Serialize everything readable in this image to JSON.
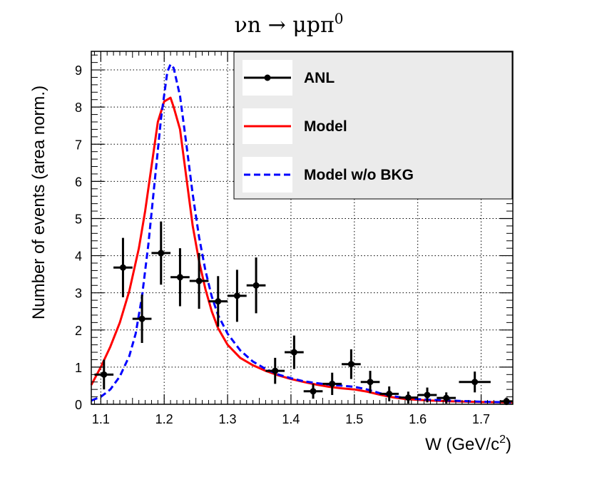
{
  "chart_data": {
    "type": "line",
    "title": "νn → μpπ",
    "title_superscript": "0",
    "xlabel": "W (GeV/c",
    "xlabel_superscript": "2",
    "xlabel_suffix": ")",
    "ylabel": "Number of events (area norm.)",
    "xlim": [
      1.085,
      1.75
    ],
    "ylim": [
      0,
      9.5
    ],
    "x_ticks": [
      1.1,
      1.2,
      1.3,
      1.4,
      1.5,
      1.6,
      1.7
    ],
    "x_tick_labels": [
      "1.1",
      "1.2",
      "1.3",
      "1.4",
      "1.5",
      "1.6",
      "1.7"
    ],
    "y_ticks": [
      0,
      1,
      2,
      3,
      4,
      5,
      6,
      7,
      8,
      9
    ],
    "y_tick_labels": [
      "0",
      "1",
      "2",
      "3",
      "4",
      "5",
      "6",
      "7",
      "8",
      "9"
    ],
    "grid": true,
    "legend_position": "top-right",
    "legend": [
      {
        "key": "anl",
        "label": "ANL",
        "color": "#000000",
        "style": "marker"
      },
      {
        "key": "model",
        "label": "Model",
        "color": "#ff0000",
        "style": "solid"
      },
      {
        "key": "model_nobkg",
        "label": "Model w/o BKG",
        "color": "#0000ff",
        "style": "dashed"
      }
    ],
    "series": [
      {
        "name": "ANL",
        "kind": "points",
        "color": "#000000",
        "x_halfwidth": 0.015,
        "points": [
          {
            "x": 1.105,
            "y": 0.8,
            "err": 0.4
          },
          {
            "x": 1.135,
            "y": 3.68,
            "err": 0.8
          },
          {
            "x": 1.165,
            "y": 2.3,
            "err": 0.65
          },
          {
            "x": 1.195,
            "y": 4.07,
            "err": 0.85
          },
          {
            "x": 1.225,
            "y": 3.42,
            "err": 0.78
          },
          {
            "x": 1.255,
            "y": 3.32,
            "err": 0.75
          },
          {
            "x": 1.285,
            "y": 2.77,
            "err": 0.68
          },
          {
            "x": 1.315,
            "y": 2.92,
            "err": 0.7
          },
          {
            "x": 1.345,
            "y": 3.2,
            "err": 0.75
          },
          {
            "x": 1.375,
            "y": 0.9,
            "err": 0.35
          },
          {
            "x": 1.405,
            "y": 1.4,
            "err": 0.45
          },
          {
            "x": 1.435,
            "y": 0.35,
            "err": 0.2
          },
          {
            "x": 1.465,
            "y": 0.55,
            "err": 0.3
          },
          {
            "x": 1.495,
            "y": 1.08,
            "err": 0.4
          },
          {
            "x": 1.525,
            "y": 0.6,
            "err": 0.3
          },
          {
            "x": 1.555,
            "y": 0.28,
            "err": 0.2
          },
          {
            "x": 1.585,
            "y": 0.18,
            "err": 0.16
          },
          {
            "x": 1.615,
            "y": 0.25,
            "err": 0.2
          },
          {
            "x": 1.645,
            "y": 0.17,
            "err": 0.15
          },
          {
            "x": 1.69,
            "y": 0.6,
            "err": 0.28,
            "x_halfwidth": 0.025
          },
          {
            "x": 1.74,
            "y": 0.08,
            "err": 0.1,
            "x_halfwidth": 0.01
          }
        ]
      },
      {
        "name": "Model",
        "kind": "line",
        "color": "#ff0000",
        "dashed": false,
        "x": [
          1.085,
          1.1,
          1.115,
          1.13,
          1.145,
          1.16,
          1.17,
          1.18,
          1.19,
          1.2,
          1.21,
          1.215,
          1.225,
          1.235,
          1.245,
          1.255,
          1.265,
          1.275,
          1.285,
          1.3,
          1.32,
          1.34,
          1.36,
          1.38,
          1.4,
          1.42,
          1.44,
          1.46,
          1.48,
          1.5,
          1.52,
          1.54,
          1.56,
          1.58,
          1.6,
          1.62,
          1.65,
          1.7,
          1.75
        ],
        "y": [
          0.52,
          1.0,
          1.55,
          2.2,
          3.05,
          4.2,
          5.2,
          6.4,
          7.6,
          8.15,
          8.25,
          8.0,
          7.4,
          6.1,
          4.8,
          3.85,
          3.1,
          2.5,
          2.05,
          1.6,
          1.25,
          1.05,
          0.9,
          0.78,
          0.68,
          0.6,
          0.53,
          0.47,
          0.43,
          0.4,
          0.34,
          0.26,
          0.19,
          0.14,
          0.12,
          0.1,
          0.08,
          0.06,
          0.05
        ]
      },
      {
        "name": "Model w/o BKG",
        "kind": "line",
        "color": "#0000ff",
        "dashed": true,
        "x": [
          1.085,
          1.1,
          1.115,
          1.13,
          1.145,
          1.155,
          1.165,
          1.175,
          1.185,
          1.195,
          1.205,
          1.21,
          1.215,
          1.225,
          1.235,
          1.245,
          1.255,
          1.265,
          1.275,
          1.285,
          1.3,
          1.32,
          1.34,
          1.36,
          1.38,
          1.4,
          1.42,
          1.44,
          1.46,
          1.48,
          1.5,
          1.52,
          1.54,
          1.56,
          1.58,
          1.6,
          1.62,
          1.65,
          1.7,
          1.75
        ],
        "y": [
          0.1,
          0.2,
          0.4,
          0.75,
          1.3,
          1.9,
          2.9,
          4.3,
          6.0,
          7.7,
          8.95,
          9.15,
          9.05,
          8.3,
          7.0,
          5.65,
          4.5,
          3.6,
          2.9,
          2.4,
          1.9,
          1.45,
          1.15,
          0.95,
          0.8,
          0.7,
          0.62,
          0.57,
          0.53,
          0.5,
          0.47,
          0.4,
          0.3,
          0.22,
          0.17,
          0.14,
          0.12,
          0.1,
          0.07,
          0.05
        ]
      }
    ]
  }
}
